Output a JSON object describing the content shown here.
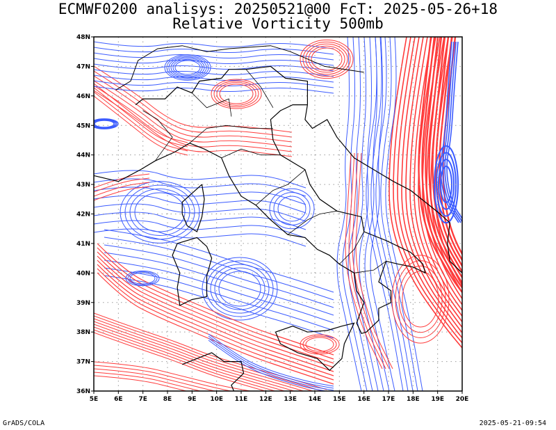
{
  "title_line1": "ECMWF0200 analisys: 20250521@00 FcT: 2025-05-26+18",
  "title_line2": "Relative Vorticity 500mb",
  "footer_left": "GrADS/COLA",
  "footer_right": "2025-05-21-09:54",
  "map": {
    "lon_range": [
      5,
      20
    ],
    "lat_range": [
      36,
      48
    ],
    "lon_labels": [
      "5E",
      "6E",
      "7E",
      "8E",
      "9E",
      "10E",
      "11E",
      "12E",
      "13E",
      "14E",
      "15E",
      "16E",
      "17E",
      "18E",
      "19E",
      "20E"
    ],
    "lat_labels": [
      "36N",
      "37N",
      "38N",
      "39N",
      "40N",
      "41N",
      "42N",
      "43N",
      "44N",
      "45N",
      "46N",
      "47N",
      "48N"
    ],
    "grid": "dotted",
    "colors": {
      "positive_contour": "#ff3b3b",
      "negative_contour": "#3b5bff",
      "coastline": "#000000",
      "grid": "#999999"
    }
  }
}
